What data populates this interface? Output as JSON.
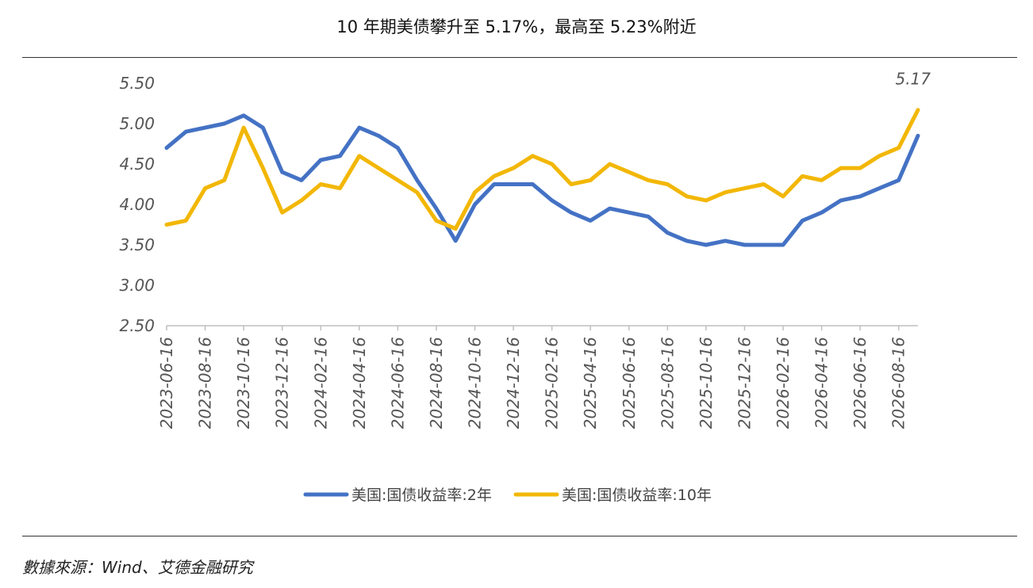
{
  "title": "10 年期美债攀升至 5.17%，最高至 5.23%附近",
  "source": "數據來源：Wind、艾德金融研究",
  "chart_data": {
    "type": "line",
    "title": "10 年期美债攀升至 5.17%，最高至 5.23%附近",
    "xlabel": "",
    "ylabel": "",
    "ylim": [
      2.5,
      5.5
    ],
    "yticks": [
      "2.50",
      "3.00",
      "3.50",
      "4.00",
      "4.50",
      "5.00",
      "5.50"
    ],
    "x": [
      "2023-06-16",
      "2023-07-16",
      "2023-08-16",
      "2023-09-16",
      "2023-10-16",
      "2023-11-16",
      "2023-12-16",
      "2024-01-16",
      "2024-02-16",
      "2024-03-16",
      "2024-04-16",
      "2024-05-16",
      "2024-06-16",
      "2024-07-16",
      "2024-08-16",
      "2024-09-16",
      "2024-10-16",
      "2024-11-16",
      "2024-12-16",
      "2025-01-16",
      "2025-02-16",
      "2025-03-16",
      "2025-04-16",
      "2025-05-16",
      "2025-06-16",
      "2025-07-16",
      "2025-08-16",
      "2025-09-16",
      "2025-10-16",
      "2025-11-16",
      "2025-12-16",
      "2026-01-16",
      "2026-02-16",
      "2026-03-16",
      "2026-04-16",
      "2026-05-16",
      "2026-06-16",
      "2026-07-16",
      "2026-08-16",
      "2026-09-16"
    ],
    "xtick_labels": [
      "2023-06-16",
      "2023-08-16",
      "2023-10-16",
      "2023-12-16",
      "2024-02-16",
      "2024-04-16",
      "2024-06-16",
      "2024-08-16",
      "2024-10-16",
      "2024-12-16",
      "2025-02-16",
      "2025-04-16",
      "2025-06-16",
      "2025-08-16",
      "2025-10-16",
      "2025-12-16",
      "2026-02-16",
      "2026-04-16",
      "2026-06-16",
      "2026-08-16"
    ],
    "series": [
      {
        "name": "美国:国债收益率:2年",
        "color": "#4472C4",
        "values": [
          4.7,
          4.9,
          4.95,
          5.0,
          5.1,
          4.95,
          4.4,
          4.3,
          4.55,
          4.6,
          4.95,
          4.85,
          4.7,
          4.3,
          3.95,
          3.55,
          4.0,
          4.25,
          4.25,
          4.25,
          4.05,
          3.9,
          3.8,
          3.95,
          3.9,
          3.85,
          3.65,
          3.55,
          3.5,
          3.55,
          3.5,
          3.5,
          3.5,
          3.8,
          3.9,
          4.05,
          4.1,
          4.2,
          4.3,
          4.85
        ]
      },
      {
        "name": "美国:国债收益率:10年",
        "color": "#F2B705",
        "values": [
          3.75,
          3.8,
          4.2,
          4.3,
          4.95,
          4.45,
          3.9,
          4.05,
          4.25,
          4.2,
          4.6,
          4.45,
          4.3,
          4.15,
          3.8,
          3.7,
          4.15,
          4.35,
          4.45,
          4.6,
          4.5,
          4.25,
          4.3,
          4.5,
          4.4,
          4.3,
          4.25,
          4.1,
          4.05,
          4.15,
          4.2,
          4.25,
          4.1,
          4.35,
          4.3,
          4.45,
          4.45,
          4.6,
          4.7,
          5.17
        ]
      }
    ],
    "annotations": [
      {
        "text": "5.17",
        "series": "美国:国债收益率:10年",
        "point": "last"
      }
    ],
    "legend": "bottom",
    "grid": false
  }
}
